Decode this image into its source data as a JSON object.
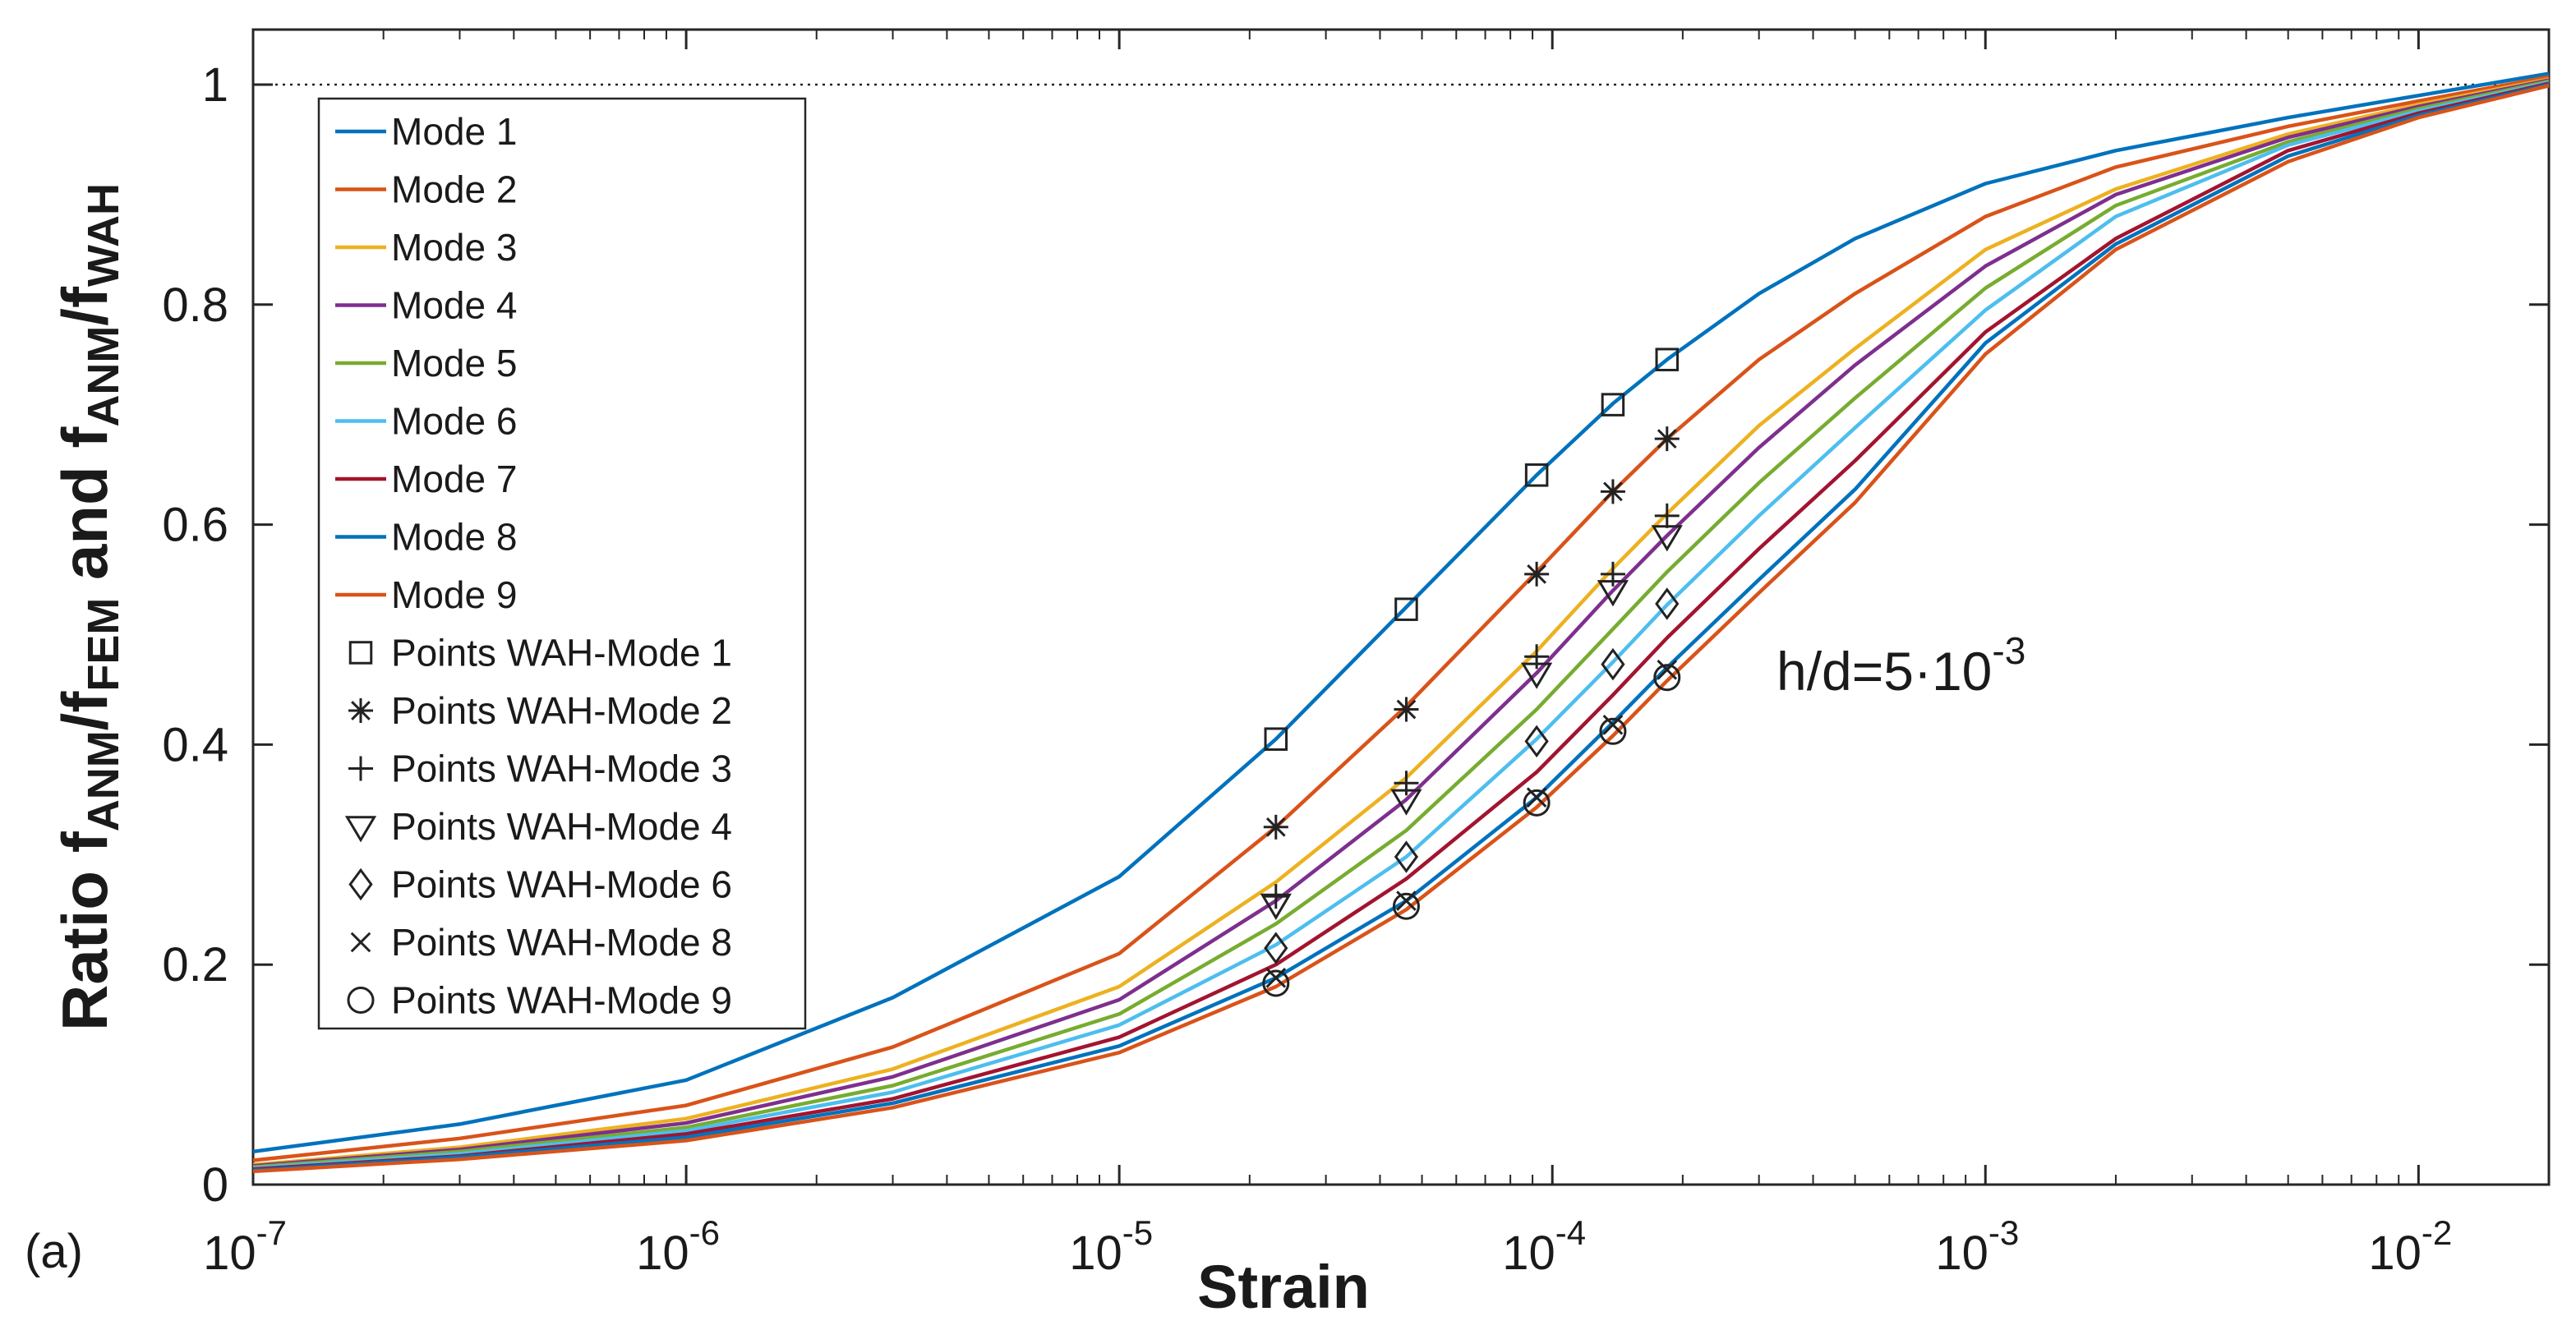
{
  "chart_data": {
    "type": "line",
    "panel_label": "(a)",
    "xscale": "log",
    "xlim": [
      1e-07,
      0.02
    ],
    "ylim": [
      0,
      1.05
    ],
    "xlabel": "Strain",
    "ylabel": {
      "prefix": "Ratio f",
      "sub1": "ANM",
      "mid1": "/f",
      "sub2": "FEM",
      "mid2": " and f",
      "sub3": "ANM",
      "mid3": "/f",
      "sub4": "WAH"
    },
    "x_ticks": [
      {
        "base": "10",
        "exp": "-7",
        "value": 1e-07
      },
      {
        "base": "10",
        "exp": "-6",
        "value": 1e-06
      },
      {
        "base": "10",
        "exp": "-5",
        "value": 1e-05
      },
      {
        "base": "10",
        "exp": "-4",
        "value": 0.0001
      },
      {
        "base": "10",
        "exp": "-3",
        "value": 0.001
      },
      {
        "base": "10",
        "exp": "-2",
        "value": 0.01
      }
    ],
    "y_ticks": [
      {
        "label": "0",
        "value": 0
      },
      {
        "label": "0.2",
        "value": 0.2
      },
      {
        "label": "0.4",
        "value": 0.4
      },
      {
        "label": "0.6",
        "value": 0.6
      },
      {
        "label": "0.8",
        "value": 0.8
      },
      {
        "label": "1",
        "value": 1
      }
    ],
    "reference_line": {
      "y": 1,
      "style": "dotted"
    },
    "annotation": {
      "text": "h/d=5·10",
      "exp": "-3"
    },
    "x": [
      1e-07,
      3e-07,
      1e-06,
      3e-06,
      1e-05,
      2.3e-05,
      4.6e-05,
      9.2e-05,
      0.000138,
      0.000184,
      0.0003,
      0.0005,
      0.001,
      0.002,
      0.005,
      0.01,
      0.02
    ],
    "series": [
      {
        "name": "Mode 1",
        "color": "#0072BD",
        "values": [
          0.03,
          0.055,
          0.095,
          0.17,
          0.28,
          0.405,
          0.525,
          0.645,
          0.71,
          0.75,
          0.81,
          0.86,
          0.91,
          0.94,
          0.97,
          0.99,
          1.01
        ]
      },
      {
        "name": "Mode 2",
        "color": "#D95319",
        "values": [
          0.022,
          0.042,
          0.072,
          0.125,
          0.21,
          0.325,
          0.435,
          0.557,
          0.63,
          0.678,
          0.75,
          0.81,
          0.88,
          0.925,
          0.962,
          0.985,
          1.007
        ]
      },
      {
        "name": "Mode 3",
        "color": "#EDB120",
        "values": [
          0.018,
          0.034,
          0.06,
          0.105,
          0.18,
          0.275,
          0.37,
          0.485,
          0.56,
          0.61,
          0.69,
          0.76,
          0.85,
          0.905,
          0.955,
          0.982,
          1.005
        ]
      },
      {
        "name": "Mode 4",
        "color": "#7E2F8E",
        "values": [
          0.017,
          0.032,
          0.056,
          0.098,
          0.168,
          0.258,
          0.35,
          0.465,
          0.54,
          0.59,
          0.67,
          0.745,
          0.835,
          0.9,
          0.952,
          0.98,
          1.004
        ]
      },
      {
        "name": "Mode 5",
        "color": "#77AC30",
        "values": [
          0.016,
          0.03,
          0.052,
          0.09,
          0.155,
          0.237,
          0.322,
          0.432,
          0.505,
          0.557,
          0.638,
          0.715,
          0.815,
          0.89,
          0.948,
          0.978,
          1.003
        ]
      },
      {
        "name": "Mode 6",
        "color": "#4DBEEE",
        "values": [
          0.015,
          0.028,
          0.049,
          0.084,
          0.145,
          0.218,
          0.298,
          0.405,
          0.475,
          0.527,
          0.608,
          0.688,
          0.795,
          0.88,
          0.945,
          0.976,
          1.002
        ]
      },
      {
        "name": "Mode 7",
        "color": "#A2142F",
        "values": [
          0.014,
          0.026,
          0.046,
          0.078,
          0.134,
          0.2,
          0.278,
          0.375,
          0.445,
          0.497,
          0.578,
          0.658,
          0.775,
          0.86,
          0.94,
          0.974,
          1.001
        ]
      },
      {
        "name": "Mode 8",
        "color": "#0072BD",
        "values": [
          0.013,
          0.025,
          0.043,
          0.074,
          0.126,
          0.188,
          0.258,
          0.352,
          0.42,
          0.47,
          0.55,
          0.632,
          0.765,
          0.855,
          0.935,
          0.972,
          1.0
        ]
      },
      {
        "name": "Mode 9",
        "color": "#D95319",
        "values": [
          0.012,
          0.023,
          0.04,
          0.07,
          0.12,
          0.18,
          0.25,
          0.343,
          0.408,
          0.458,
          0.538,
          0.62,
          0.755,
          0.85,
          0.93,
          0.97,
          0.999
        ]
      }
    ],
    "points": [
      {
        "name": "Points WAH-Mode 1",
        "marker": "square",
        "x": [
          2.3e-05,
          4.6e-05,
          9.2e-05,
          0.000138,
          0.000184
        ],
        "y": [
          0.405,
          0.523,
          0.645,
          0.709,
          0.75
        ]
      },
      {
        "name": "Points WAH-Mode 2",
        "marker": "asterisk",
        "x": [
          2.3e-05,
          4.6e-05,
          9.2e-05,
          0.000138,
          0.000184
        ],
        "y": [
          0.325,
          0.432,
          0.555,
          0.63,
          0.678
        ]
      },
      {
        "name": "Points WAH-Mode 3",
        "marker": "plus",
        "x": [
          2.3e-05,
          4.6e-05,
          9.2e-05,
          0.000138,
          0.000184
        ],
        "y": [
          0.262,
          0.365,
          0.48,
          0.555,
          0.608
        ]
      },
      {
        "name": "Points WAH-Mode 4",
        "marker": "triangle-down",
        "x": [
          2.3e-05,
          4.6e-05,
          9.2e-05,
          0.000138,
          0.000184
        ],
        "y": [
          0.255,
          0.35,
          0.465,
          0.54,
          0.59
        ]
      },
      {
        "name": "Points WAH-Mode 6",
        "marker": "diamond",
        "x": [
          2.3e-05,
          4.6e-05,
          9.2e-05,
          0.000138,
          0.000184
        ],
        "y": [
          0.215,
          0.298,
          0.403,
          0.473,
          0.528
        ]
      },
      {
        "name": "Points WAH-Mode 8",
        "marker": "x",
        "x": [
          2.3e-05,
          4.6e-05,
          9.2e-05,
          0.000138,
          0.000184
        ],
        "y": [
          0.188,
          0.258,
          0.352,
          0.418,
          0.468
        ]
      },
      {
        "name": "Points WAH-Mode 9",
        "marker": "circle",
        "x": [
          2.3e-05,
          4.6e-05,
          9.2e-05,
          0.000138,
          0.000184
        ],
        "y": [
          0.183,
          0.253,
          0.347,
          0.412,
          0.461
        ]
      }
    ]
  }
}
